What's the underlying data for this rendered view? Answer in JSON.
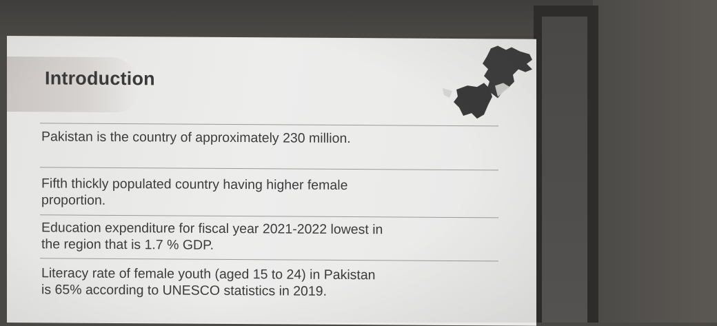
{
  "slide": {
    "title": "Introduction",
    "bullets": [
      {
        "line1": "Pakistan is the country of approximately 230 million.",
        "line2": ""
      },
      {
        "line1": "Fifth thickly populated country having higher female",
        "line2": "proportion."
      },
      {
        "line1": "Education expenditure for fiscal year 2021-2022 lowest in",
        "line2": "the region that is 1.7 % GDP."
      },
      {
        "line1": "Literacy rate of female youth (aged 15 to 24) in Pakistan",
        "line2": "is 65% according to UNESCO statistics in 2019."
      }
    ]
  },
  "colors": {
    "slide_background": "#ededec",
    "text": "#3c3c3c",
    "map": "#3f3f3f",
    "wall": "#4a4845"
  },
  "icons": {
    "decoration": "pakistan-map-icon"
  }
}
